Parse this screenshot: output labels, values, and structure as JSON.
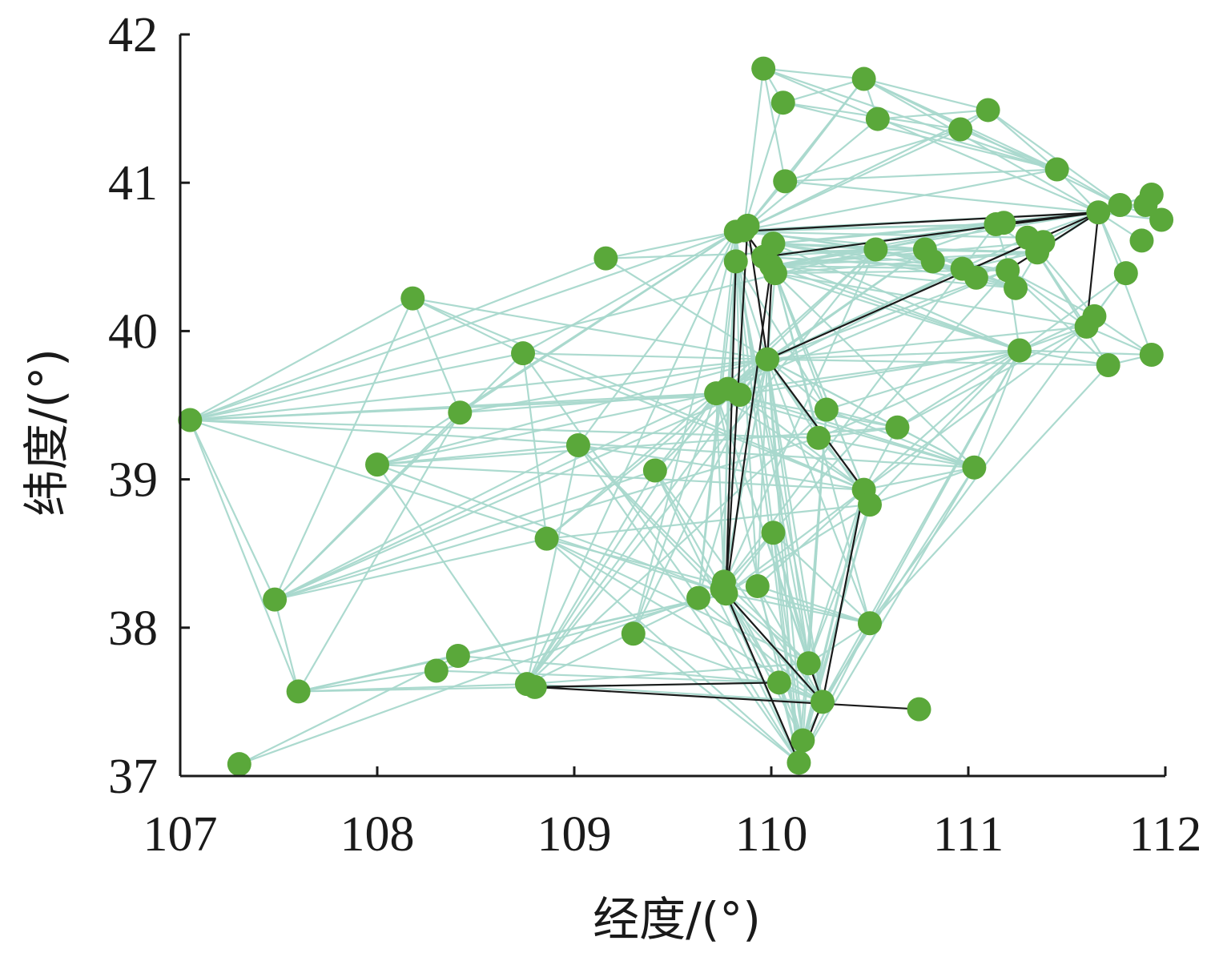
{
  "chart_data": {
    "type": "scatter",
    "xlabel": "经度/(°)",
    "ylabel": "纬度/(°)",
    "xlim": [
      107,
      112
    ],
    "ylim": [
      37,
      42
    ],
    "xticks": [
      "107",
      "108",
      "109",
      "110",
      "111",
      "112"
    ],
    "yticks": [
      "37",
      "38",
      "39",
      "40",
      "41",
      "42"
    ],
    "grid": false,
    "colors": {
      "points": "#5aa83a",
      "light_edges": "#a8d8cc",
      "dark_edges": "#1a1a1a",
      "axis": "#1a1a1a"
    },
    "points": [
      {
        "x": 107.05,
        "y": 39.4
      },
      {
        "x": 107.3,
        "y": 37.08
      },
      {
        "x": 107.48,
        "y": 38.19
      },
      {
        "x": 107.6,
        "y": 37.57
      },
      {
        "x": 108.0,
        "y": 39.1
      },
      {
        "x": 108.18,
        "y": 40.22
      },
      {
        "x": 108.3,
        "y": 37.71
      },
      {
        "x": 108.41,
        "y": 37.81
      },
      {
        "x": 108.42,
        "y": 39.45
      },
      {
        "x": 108.74,
        "y": 39.85
      },
      {
        "x": 108.76,
        "y": 37.62
      },
      {
        "x": 108.8,
        "y": 37.6
      },
      {
        "x": 108.86,
        "y": 38.6
      },
      {
        "x": 109.02,
        "y": 39.23
      },
      {
        "x": 109.16,
        "y": 40.49
      },
      {
        "x": 109.3,
        "y": 37.96
      },
      {
        "x": 109.41,
        "y": 39.06
      },
      {
        "x": 109.63,
        "y": 38.2
      },
      {
        "x": 109.72,
        "y": 39.58
      },
      {
        "x": 109.75,
        "y": 38.26
      },
      {
        "x": 109.76,
        "y": 38.31
      },
      {
        "x": 109.77,
        "y": 38.23
      },
      {
        "x": 109.78,
        "y": 39.61
      },
      {
        "x": 109.82,
        "y": 40.67
      },
      {
        "x": 109.82,
        "y": 40.47
      },
      {
        "x": 109.84,
        "y": 39.57
      },
      {
        "x": 109.86,
        "y": 40.68
      },
      {
        "x": 109.88,
        "y": 40.71
      },
      {
        "x": 109.93,
        "y": 38.28
      },
      {
        "x": 109.96,
        "y": 41.77
      },
      {
        "x": 109.96,
        "y": 40.5
      },
      {
        "x": 109.98,
        "y": 39.81
      },
      {
        "x": 110.0,
        "y": 40.44
      },
      {
        "x": 110.01,
        "y": 40.59
      },
      {
        "x": 110.01,
        "y": 38.64
      },
      {
        "x": 110.02,
        "y": 40.39
      },
      {
        "x": 110.04,
        "y": 37.63
      },
      {
        "x": 110.06,
        "y": 41.54
      },
      {
        "x": 110.07,
        "y": 41.01
      },
      {
        "x": 110.14,
        "y": 37.09
      },
      {
        "x": 110.16,
        "y": 37.24
      },
      {
        "x": 110.19,
        "y": 37.76
      },
      {
        "x": 110.24,
        "y": 39.28
      },
      {
        "x": 110.26,
        "y": 37.5
      },
      {
        "x": 110.28,
        "y": 39.47
      },
      {
        "x": 110.47,
        "y": 38.93
      },
      {
        "x": 110.47,
        "y": 41.7
      },
      {
        "x": 110.5,
        "y": 38.83
      },
      {
        "x": 110.5,
        "y": 38.03
      },
      {
        "x": 110.53,
        "y": 40.55
      },
      {
        "x": 110.54,
        "y": 41.43
      },
      {
        "x": 110.64,
        "y": 39.35
      },
      {
        "x": 110.75,
        "y": 37.45
      },
      {
        "x": 110.78,
        "y": 40.55
      },
      {
        "x": 110.82,
        "y": 40.47
      },
      {
        "x": 110.96,
        "y": 41.36
      },
      {
        "x": 110.97,
        "y": 40.42
      },
      {
        "x": 111.04,
        "y": 40.36
      },
      {
        "x": 111.03,
        "y": 39.08
      },
      {
        "x": 111.1,
        "y": 41.49
      },
      {
        "x": 111.14,
        "y": 40.72
      },
      {
        "x": 111.18,
        "y": 40.73
      },
      {
        "x": 111.2,
        "y": 40.41
      },
      {
        "x": 111.24,
        "y": 40.29
      },
      {
        "x": 111.26,
        "y": 39.87
      },
      {
        "x": 111.3,
        "y": 40.63
      },
      {
        "x": 111.35,
        "y": 40.53
      },
      {
        "x": 111.38,
        "y": 40.6
      },
      {
        "x": 111.45,
        "y": 41.09
      },
      {
        "x": 111.6,
        "y": 40.03
      },
      {
        "x": 111.64,
        "y": 40.1
      },
      {
        "x": 111.66,
        "y": 40.8
      },
      {
        "x": 111.71,
        "y": 39.77
      },
      {
        "x": 111.77,
        "y": 40.85
      },
      {
        "x": 111.8,
        "y": 40.39
      },
      {
        "x": 111.88,
        "y": 40.61
      },
      {
        "x": 111.9,
        "y": 40.85
      },
      {
        "x": 111.93,
        "y": 40.92
      },
      {
        "x": 111.93,
        "y": 39.84
      },
      {
        "x": 111.98,
        "y": 40.75
      }
    ],
    "dark_edges": [
      [
        26,
        30
      ],
      [
        30,
        71
      ],
      [
        60,
        71
      ],
      [
        62,
        71
      ],
      [
        71,
        69
      ],
      [
        31,
        71
      ],
      [
        27,
        31
      ],
      [
        33,
        31
      ],
      [
        27,
        21
      ],
      [
        24,
        21
      ],
      [
        32,
        21
      ],
      [
        31,
        45
      ],
      [
        45,
        43
      ],
      [
        21,
        43
      ],
      [
        43,
        39
      ],
      [
        41,
        43
      ],
      [
        11,
        36
      ],
      [
        11,
        52
      ],
      [
        21,
        39
      ],
      [
        23,
        71
      ]
    ],
    "light_edges": [
      [
        0,
        5
      ],
      [
        0,
        9
      ],
      [
        0,
        14
      ],
      [
        0,
        18
      ],
      [
        0,
        21
      ],
      [
        0,
        25
      ],
      [
        0,
        31
      ],
      [
        0,
        23
      ],
      [
        0,
        2
      ],
      [
        0,
        3
      ],
      [
        0,
        58
      ],
      [
        0,
        49
      ],
      [
        0,
        42
      ],
      [
        2,
        3
      ],
      [
        2,
        5
      ],
      [
        2,
        13
      ],
      [
        2,
        16
      ],
      [
        2,
        25
      ],
      [
        2,
        18
      ],
      [
        2,
        9
      ],
      [
        2,
        8
      ],
      [
        2,
        12
      ],
      [
        2,
        42
      ],
      [
        3,
        10
      ],
      [
        3,
        36
      ],
      [
        3,
        21
      ],
      [
        3,
        7
      ],
      [
        3,
        8
      ],
      [
        3,
        6
      ],
      [
        1,
        7
      ],
      [
        1,
        17
      ],
      [
        4,
        18
      ],
      [
        4,
        31
      ],
      [
        4,
        23
      ],
      [
        4,
        13
      ],
      [
        4,
        45
      ],
      [
        4,
        51
      ],
      [
        4,
        10
      ],
      [
        4,
        21
      ],
      [
        5,
        8
      ],
      [
        5,
        31
      ],
      [
        5,
        45
      ],
      [
        5,
        9
      ],
      [
        8,
        18
      ],
      [
        8,
        23
      ],
      [
        8,
        31
      ],
      [
        9,
        12
      ],
      [
        9,
        17
      ],
      [
        9,
        23
      ],
      [
        9,
        31
      ],
      [
        9,
        45
      ],
      [
        10,
        13
      ],
      [
        10,
        16
      ],
      [
        10,
        18
      ],
      [
        10,
        23
      ],
      [
        10,
        31
      ],
      [
        10,
        44
      ],
      [
        10,
        19
      ],
      [
        10,
        41
      ],
      [
        10,
        43
      ],
      [
        10,
        49
      ],
      [
        12,
        18
      ],
      [
        12,
        31
      ],
      [
        13,
        23
      ],
      [
        13,
        45
      ],
      [
        13,
        19
      ],
      [
        14,
        23
      ],
      [
        14,
        49
      ],
      [
        14,
        31
      ],
      [
        15,
        18
      ],
      [
        15,
        31
      ],
      [
        15,
        23
      ],
      [
        16,
        18
      ],
      [
        16,
        31
      ],
      [
        16,
        19
      ],
      [
        17,
        23
      ],
      [
        17,
        31
      ],
      [
        17,
        24
      ],
      [
        18,
        20
      ],
      [
        18,
        31
      ],
      [
        18,
        45
      ],
      [
        18,
        49
      ],
      [
        18,
        62
      ],
      [
        18,
        64
      ],
      [
        18,
        56
      ],
      [
        18,
        58
      ],
      [
        18,
        51
      ],
      [
        18,
        41
      ],
      [
        18,
        43
      ],
      [
        18,
        39
      ],
      [
        19,
        23
      ],
      [
        19,
        31
      ],
      [
        19,
        49
      ],
      [
        19,
        56
      ],
      [
        19,
        62
      ],
      [
        20,
        22
      ],
      [
        20,
        31
      ],
      [
        22,
        24
      ],
      [
        22,
        31
      ],
      [
        22,
        49
      ],
      [
        22,
        53
      ],
      [
        23,
        28
      ],
      [
        23,
        34
      ],
      [
        23,
        35
      ],
      [
        23,
        53
      ],
      [
        23,
        60
      ],
      [
        23,
        65
      ],
      [
        24,
        31
      ],
      [
        24,
        44
      ],
      [
        24,
        43
      ],
      [
        24,
        39
      ],
      [
        24,
        41
      ],
      [
        26,
        29
      ],
      [
        26,
        37
      ],
      [
        26,
        38
      ],
      [
        26,
        46
      ],
      [
        26,
        50
      ],
      [
        26,
        55
      ],
      [
        26,
        59
      ],
      [
        26,
        68
      ],
      [
        26,
        71
      ],
      [
        26,
        62
      ],
      [
        26,
        60
      ],
      [
        26,
        49
      ],
      [
        29,
        37
      ],
      [
        29,
        38
      ],
      [
        29,
        46
      ],
      [
        29,
        68
      ],
      [
        29,
        71
      ],
      [
        37,
        46
      ],
      [
        37,
        55
      ],
      [
        37,
        68
      ],
      [
        38,
        46
      ],
      [
        38,
        55
      ],
      [
        38,
        68
      ],
      [
        38,
        71
      ],
      [
        46,
        50
      ],
      [
        46,
        59
      ],
      [
        46,
        68
      ],
      [
        46,
        71
      ],
      [
        46,
        73
      ],
      [
        50,
        59
      ],
      [
        50,
        68
      ],
      [
        55,
        59
      ],
      [
        55,
        68
      ],
      [
        59,
        68
      ],
      [
        59,
        73
      ],
      [
        68,
        71
      ],
      [
        68,
        73
      ],
      [
        71,
        73
      ],
      [
        71,
        76
      ],
      [
        71,
        77
      ],
      [
        71,
        79
      ],
      [
        71,
        78
      ],
      [
        73,
        76
      ],
      [
        73,
        77
      ],
      [
        73,
        79
      ],
      [
        76,
        77
      ],
      [
        76,
        79
      ],
      [
        75,
        71
      ],
      [
        74,
        71
      ],
      [
        31,
        35
      ],
      [
        31,
        39
      ],
      [
        31,
        40
      ],
      [
        31,
        41
      ],
      [
        31,
        42
      ],
      [
        31,
        43
      ],
      [
        31,
        44
      ],
      [
        31,
        47
      ],
      [
        31,
        48
      ],
      [
        31,
        51
      ],
      [
        31,
        53
      ],
      [
        31,
        56
      ],
      [
        31,
        58
      ],
      [
        31,
        62
      ],
      [
        31,
        64
      ],
      [
        31,
        65
      ],
      [
        31,
        69
      ],
      [
        31,
        72
      ],
      [
        32,
        49
      ],
      [
        32,
        53
      ],
      [
        32,
        56
      ],
      [
        32,
        60
      ],
      [
        32,
        63
      ],
      [
        32,
        66
      ],
      [
        32,
        71
      ],
      [
        32,
        64
      ],
      [
        32,
        67
      ],
      [
        33,
        49
      ],
      [
        33,
        56
      ],
      [
        33,
        60
      ],
      [
        33,
        63
      ],
      [
        33,
        71
      ],
      [
        33,
        66
      ],
      [
        33,
        64
      ],
      [
        35,
        42
      ],
      [
        35,
        44
      ],
      [
        35,
        45
      ],
      [
        35,
        47
      ],
      [
        35,
        48
      ],
      [
        35,
        58
      ],
      [
        35,
        62
      ],
      [
        35,
        64
      ],
      [
        35,
        66
      ],
      [
        35,
        69
      ],
      [
        34,
        39
      ],
      [
        34,
        40
      ],
      [
        34,
        41
      ],
      [
        34,
        43
      ],
      [
        34,
        48
      ],
      [
        36,
        39
      ],
      [
        36,
        40
      ],
      [
        36,
        41
      ],
      [
        36,
        43
      ],
      [
        39,
        45
      ],
      [
        39,
        47
      ],
      [
        39,
        48
      ],
      [
        40,
        45
      ],
      [
        40,
        47
      ],
      [
        40,
        48
      ],
      [
        41,
        47
      ],
      [
        41,
        44
      ],
      [
        41,
        45
      ],
      [
        41,
        48
      ],
      [
        40,
        44
      ],
      [
        39,
        44
      ],
      [
        42,
        51
      ],
      [
        42,
        58
      ],
      [
        42,
        64
      ],
      [
        44,
        51
      ],
      [
        44,
        58
      ],
      [
        44,
        64
      ],
      [
        45,
        51
      ],
      [
        47,
        64
      ],
      [
        47,
        58
      ],
      [
        48,
        69
      ],
      [
        48,
        72
      ],
      [
        48,
        64
      ],
      [
        49,
        53
      ],
      [
        49,
        56
      ],
      [
        49,
        60
      ],
      [
        49,
        63
      ],
      [
        49,
        66
      ],
      [
        53,
        56
      ],
      [
        53,
        60
      ],
      [
        53,
        63
      ],
      [
        56,
        60
      ],
      [
        56,
        63
      ],
      [
        56,
        66
      ],
      [
        60,
        63
      ],
      [
        60,
        66
      ],
      [
        63,
        66
      ],
      [
        64,
        69
      ],
      [
        64,
        72
      ],
      [
        64,
        70
      ],
      [
        64,
        78
      ],
      [
        64,
        74
      ],
      [
        69,
        74
      ],
      [
        69,
        78
      ],
      [
        72,
        78
      ],
      [
        70,
        74
      ],
      [
        70,
        78
      ],
      [
        62,
        64
      ],
      [
        62,
        69
      ],
      [
        62,
        72
      ],
      [
        62,
        70
      ],
      [
        65,
        69
      ],
      [
        65,
        70
      ],
      [
        65,
        72
      ],
      [
        65,
        71
      ],
      [
        67,
        71
      ],
      [
        66,
        71
      ],
      [
        61,
        71
      ],
      [
        57,
        71
      ],
      [
        51,
        58
      ],
      [
        51,
        64
      ],
      [
        51,
        69
      ],
      [
        58,
        64
      ],
      [
        45,
        64
      ],
      [
        45,
        69
      ],
      [
        45,
        58
      ],
      [
        43,
        64
      ],
      [
        43,
        58
      ],
      [
        43,
        45
      ],
      [
        42,
        45
      ],
      [
        39,
        58
      ],
      [
        21,
        45
      ],
      [
        21,
        47
      ],
      [
        21,
        48
      ],
      [
        21,
        34
      ],
      [
        21,
        41
      ],
      [
        21,
        36
      ],
      [
        21,
        40
      ],
      [
        17,
        43
      ],
      [
        17,
        39
      ],
      [
        19,
        43
      ],
      [
        19,
        39
      ],
      [
        20,
        36
      ],
      [
        20,
        41
      ],
      [
        7,
        21
      ],
      [
        6,
        21
      ],
      [
        7,
        36
      ],
      [
        6,
        36
      ],
      [
        15,
        43
      ],
      [
        15,
        39
      ],
      [
        12,
        43
      ],
      [
        12,
        41
      ],
      [
        12,
        47
      ],
      [
        12,
        48
      ],
      [
        12,
        39
      ],
      [
        13,
        43
      ],
      [
        13,
        39
      ],
      [
        16,
        43
      ],
      [
        16,
        39
      ],
      [
        25,
        31
      ],
      [
        25,
        45
      ],
      [
        25,
        23
      ],
      [
        25,
        58
      ],
      [
        25,
        64
      ],
      [
        28,
        31
      ],
      [
        28,
        45
      ],
      [
        28,
        40
      ],
      [
        28,
        48
      ],
      [
        28,
        43
      ],
      [
        30,
        49
      ],
      [
        30,
        56
      ],
      [
        30,
        60
      ],
      [
        30,
        62
      ],
      [
        30,
        64
      ],
      [
        30,
        71
      ]
    ]
  }
}
